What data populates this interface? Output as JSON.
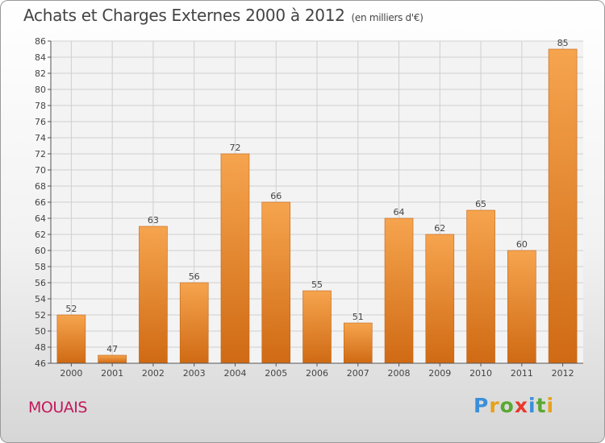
{
  "title": "Achats et Charges Externes 2000 à 2012",
  "unit_note": "(en milliers d'€)",
  "commune": "MOUAIS",
  "logo": {
    "letters": [
      "P",
      "r",
      "o",
      "x",
      "i",
      "t",
      "i"
    ],
    "colors": [
      "#3b8fd9",
      "#e6a21a",
      "#5aa832",
      "#e63a2e",
      "#3b8fd9",
      "#5aa832",
      "#e6a21a"
    ]
  },
  "colors": {
    "bar_light": "#f6a44e",
    "bar_dark": "#d06a14",
    "commune": "#c2185b"
  },
  "chart_data": {
    "type": "bar",
    "categories": [
      "2000",
      "2001",
      "2002",
      "2003",
      "2004",
      "2005",
      "2006",
      "2007",
      "2008",
      "2009",
      "2010",
      "2011",
      "2012"
    ],
    "values": [
      52,
      47,
      63,
      56,
      72,
      66,
      55,
      51,
      64,
      62,
      65,
      60,
      85
    ],
    "title": "Achats et Charges Externes 2000 à 2012",
    "xlabel": "",
    "ylabel": "",
    "ylim": [
      46,
      86
    ],
    "yticks": [
      46,
      48,
      50,
      52,
      54,
      56,
      58,
      60,
      62,
      64,
      66,
      68,
      70,
      72,
      74,
      76,
      78,
      80,
      82,
      84,
      86
    ],
    "grid": true,
    "data_labels": true
  }
}
